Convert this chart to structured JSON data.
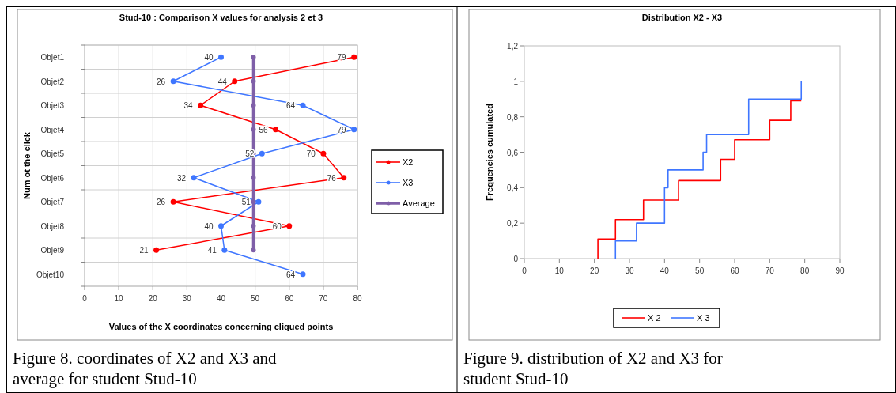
{
  "chart_data": [
    {
      "type": "line",
      "orientation": "horizontal",
      "title": "Stud-10 : Comparison X values for analysis 2 et 3",
      "xlabel": "Values of the X coordinates concerning cliqued points",
      "ylabel": "Num ot the click",
      "categories": [
        "Objet1",
        "Objet2",
        "Objet3",
        "Objet4",
        "Objet5",
        "Objet6",
        "Objet7",
        "Objet8",
        "Objet9",
        "Objet10"
      ],
      "xlim": [
        0,
        80
      ],
      "xticks": [
        0,
        10,
        20,
        30,
        40,
        50,
        60,
        70,
        80
      ],
      "grid": true,
      "legend": "right",
      "marker": "circle",
      "series": [
        {
          "name": "X2",
          "color": "#ff0000",
          "values": [
            79,
            44,
            34,
            56,
            70,
            76,
            26,
            60,
            21,
            null
          ],
          "value_labels": [
            "79",
            "44",
            "34",
            "56",
            "70",
            "76",
            "26",
            "60",
            "21",
            null
          ]
        },
        {
          "name": "X3",
          "color": "#3f76ff",
          "values": [
            40,
            26,
            64,
            79,
            52,
            32,
            51,
            40,
            41,
            64
          ],
          "value_labels": [
            "40",
            "26",
            "64",
            "79",
            "52",
            "32",
            "51",
            "40",
            "41",
            "64"
          ]
        },
        {
          "name": "Average",
          "color": "#7f5fa8",
          "values": [
            49.5,
            49.5,
            49.5,
            49.5,
            49.5,
            49.5,
            49.5,
            49.5,
            49.5,
            null
          ]
        }
      ],
      "annotations": [
        "Figure 8. coordinates of X2 and X3 and average for student Stud-10"
      ]
    },
    {
      "type": "step",
      "title": "Distribution X2 - X3",
      "ylabel": "Frequencies cumulated",
      "xlim": [
        0,
        90
      ],
      "xticks": [
        0,
        10,
        20,
        30,
        40,
        50,
        60,
        70,
        80,
        90
      ],
      "ylim": [
        0,
        1.2
      ],
      "yticks": [
        0,
        {
          "value": 0.2,
          "label": "0,2"
        },
        {
          "value": 0.4,
          "label": "0,4"
        },
        {
          "value": 0.6,
          "label": "0,6"
        },
        {
          "value": 0.8,
          "label": "0,8"
        },
        1,
        {
          "value": 1.2,
          "label": "1,2"
        }
      ],
      "grid": false,
      "legend": "bottom",
      "series": [
        {
          "name": "X 2",
          "color": "#ff0000",
          "x": [
            21,
            21,
            26,
            34,
            44,
            56,
            60,
            70,
            76,
            79
          ],
          "values": [
            0,
            0.11,
            0.22,
            0.33,
            0.44,
            0.56,
            0.67,
            0.78,
            0.89,
            0.89
          ]
        },
        {
          "name": "X 3",
          "color": "#3f76ff",
          "x": [
            26,
            26,
            32,
            40,
            41,
            51,
            52,
            64,
            79,
            79
          ],
          "values": [
            0,
            0.1,
            0.2,
            0.4,
            0.5,
            0.6,
            0.7,
            0.9,
            0.9,
            1
          ]
        }
      ],
      "annotations": [
        "Figure 9. distribution of X2 and X3 for student Stud-10"
      ]
    }
  ]
}
